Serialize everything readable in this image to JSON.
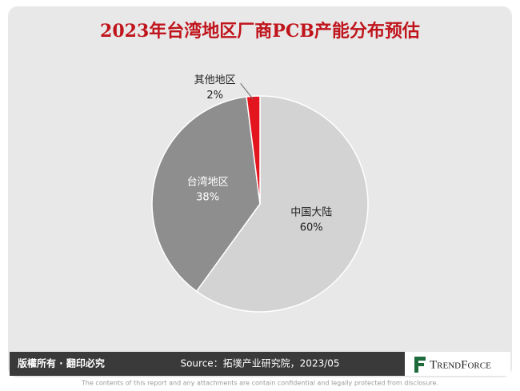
{
  "chart_data": {
    "type": "pie",
    "title": "2023年台湾地区厂商PCB产能分布预估",
    "categories": [
      "中国大陆",
      "台湾地区",
      "其他地区"
    ],
    "values": [
      60,
      38,
      2
    ],
    "value_labels": [
      "60%",
      "38%",
      "2%"
    ],
    "colors": [
      "#d3d3d3",
      "#8e8e8e",
      "#e3151f"
    ]
  },
  "footer": {
    "copyright": "版權所有 · 翻印必究",
    "source": "Source：拓墣产业研究院，2023/05",
    "logo": "TrendForce",
    "disclaimer": "The contents of this report and any attachments are contain confidential and legally protected from disclosure."
  }
}
